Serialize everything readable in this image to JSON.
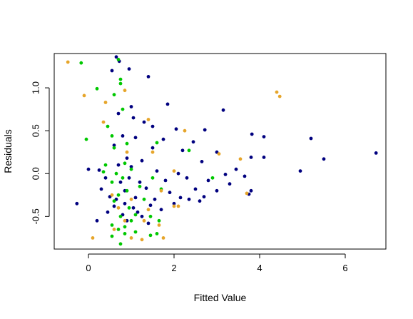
{
  "chart_data": {
    "type": "scatter",
    "title": "",
    "xlabel": "Fitted Value",
    "ylabel": "Residuals",
    "xlim": [
      -0.8,
      6.95
    ],
    "ylim": [
      -0.88,
      1.4
    ],
    "xticks": [
      0,
      2,
      4,
      6
    ],
    "yticks": [
      -0.5,
      0.0,
      0.5,
      1.0
    ],
    "xtick_labels": [
      "0",
      "2",
      "4",
      "6"
    ],
    "ytick_labels": [
      "-0.5",
      "0.0",
      "0.5",
      "1.0"
    ],
    "grid": false,
    "legend": "none",
    "series": [
      {
        "color": "#00007f",
        "points": [
          [
            0.65,
            1.36
          ],
          [
            0.72,
            1.31
          ],
          [
            0.55,
            1.2
          ],
          [
            0.95,
            1.22
          ],
          [
            1.4,
            1.13
          ],
          [
            1.85,
            0.81
          ],
          [
            1.0,
            0.78
          ],
          [
            3.15,
            0.74
          ],
          [
            0.7,
            0.7
          ],
          [
            1.05,
            0.65
          ],
          [
            1.3,
            0.6
          ],
          [
            2.05,
            0.52
          ],
          [
            2.72,
            0.51
          ],
          [
            3.82,
            0.46
          ],
          [
            4.1,
            0.43
          ],
          [
            5.2,
            0.41
          ],
          [
            0.8,
            0.44
          ],
          [
            1.1,
            0.42
          ],
          [
            1.75,
            0.4
          ],
          [
            2.45,
            0.37
          ],
          [
            0.6,
            0.33
          ],
          [
            1.5,
            0.3
          ],
          [
            2.2,
            0.27
          ],
          [
            3.0,
            0.25
          ],
          [
            3.8,
            0.19
          ],
          [
            4.1,
            0.19
          ],
          [
            5.5,
            0.17
          ],
          [
            6.72,
            0.24
          ],
          [
            0.9,
            0.18
          ],
          [
            1.25,
            0.15
          ],
          [
            2.65,
            0.14
          ],
          [
            3.45,
            0.05
          ],
          [
            4.95,
            0.03
          ],
          [
            0.0,
            0.05
          ],
          [
            0.25,
            0.04
          ],
          [
            1.0,
            0.08
          ],
          [
            1.6,
            0.03
          ],
          [
            2.1,
            0.0
          ],
          [
            3.2,
            -0.01
          ],
          [
            3.65,
            -0.03
          ],
          [
            0.4,
            -0.05
          ],
          [
            0.75,
            -0.1
          ],
          [
            1.2,
            -0.1
          ],
          [
            1.8,
            -0.08
          ],
          [
            2.3,
            -0.05
          ],
          [
            2.8,
            -0.08
          ],
          [
            3.3,
            -0.12
          ],
          [
            0.3,
            -0.18
          ],
          [
            0.85,
            -0.2
          ],
          [
            1.35,
            -0.17
          ],
          [
            1.9,
            -0.22
          ],
          [
            2.5,
            -0.18
          ],
          [
            3.0,
            -0.2
          ],
          [
            3.75,
            -0.24
          ],
          [
            0.5,
            -0.27
          ],
          [
            1.1,
            -0.28
          ],
          [
            1.55,
            -0.3
          ],
          [
            2.15,
            -0.28
          ],
          [
            2.7,
            -0.27
          ],
          [
            3.8,
            -0.2
          ],
          [
            -0.27,
            -0.35
          ],
          [
            0.6,
            -0.38
          ],
          [
            1.05,
            -0.4
          ],
          [
            1.45,
            -0.37
          ],
          [
            2.0,
            -0.35
          ],
          [
            2.6,
            -0.32
          ],
          [
            0.45,
            -0.45
          ],
          [
            0.8,
            -0.48
          ],
          [
            1.25,
            -0.5
          ],
          [
            1.7,
            -0.42
          ],
          [
            0.2,
            -0.55
          ],
          [
            0.9,
            -0.55
          ],
          [
            1.4,
            -0.58
          ],
          [
            0.65,
            -0.3
          ],
          [
            1.15,
            -0.45
          ],
          [
            0.95,
            -0.05
          ],
          [
            0.7,
            0.1
          ],
          [
            1.5,
            0.55
          ],
          [
            0.85,
            -0.35
          ],
          [
            2.35,
            -0.3
          ]
        ]
      },
      {
        "color": "#00c800",
        "points": [
          [
            -0.17,
            1.29
          ],
          [
            0.7,
            1.33
          ],
          [
            0.2,
            0.99
          ],
          [
            0.75,
            1.1
          ],
          [
            0.75,
            1.05
          ],
          [
            0.6,
            0.92
          ],
          [
            0.8,
            0.75
          ],
          [
            0.45,
            0.55
          ],
          [
            0.55,
            0.44
          ],
          [
            -0.05,
            0.4
          ],
          [
            1.6,
            0.36
          ],
          [
            0.6,
            0.3
          ],
          [
            0.9,
            0.35
          ],
          [
            2.35,
            0.27
          ],
          [
            0.4,
            0.1
          ],
          [
            0.85,
            0.12
          ],
          [
            1.0,
            0.05
          ],
          [
            0.35,
            0.02
          ],
          [
            0.8,
            -0.05
          ],
          [
            1.5,
            -0.05
          ],
          [
            2.9,
            -0.05
          ],
          [
            0.55,
            -0.1
          ],
          [
            1.2,
            -0.15
          ],
          [
            1.7,
            -0.18
          ],
          [
            0.7,
            -0.25
          ],
          [
            1.3,
            -0.3
          ],
          [
            0.6,
            -0.32
          ],
          [
            0.95,
            -0.4
          ],
          [
            0.75,
            -0.5
          ],
          [
            1.1,
            -0.48
          ],
          [
            1.45,
            -0.5
          ],
          [
            1.65,
            -0.55
          ],
          [
            0.55,
            -0.6
          ],
          [
            0.85,
            -0.62
          ],
          [
            0.7,
            -0.65
          ],
          [
            1.1,
            -0.68
          ],
          [
            0.85,
            -0.7
          ],
          [
            1.45,
            -0.72
          ],
          [
            1.6,
            -0.7
          ],
          [
            0.55,
            -0.73
          ],
          [
            0.75,
            -0.82
          ],
          [
            1.0,
            -0.55
          ],
          [
            0.65,
            0.0
          ],
          [
            0.9,
            -0.2
          ]
        ]
      },
      {
        "color": "#e6a52a",
        "points": [
          [
            -0.48,
            1.3
          ],
          [
            -0.1,
            0.91
          ],
          [
            0.4,
            0.83
          ],
          [
            0.85,
            0.97
          ],
          [
            4.4,
            0.95
          ],
          [
            4.47,
            0.9
          ],
          [
            0.35,
            0.6
          ],
          [
            1.4,
            0.63
          ],
          [
            2.25,
            0.5
          ],
          [
            3.05,
            0.23
          ],
          [
            3.55,
            0.17
          ],
          [
            0.9,
            0.25
          ],
          [
            1.5,
            0.25
          ],
          [
            2.0,
            0.03
          ],
          [
            1.7,
            -0.2
          ],
          [
            3.7,
            -0.23
          ],
          [
            0.55,
            -0.25
          ],
          [
            1.0,
            -0.3
          ],
          [
            2.0,
            -0.38
          ],
          [
            2.1,
            -0.38
          ],
          [
            0.7,
            -0.4
          ],
          [
            1.4,
            -0.42
          ],
          [
            0.85,
            -0.55
          ],
          [
            1.3,
            -0.55
          ],
          [
            0.1,
            -0.75
          ],
          [
            1.0,
            -0.75
          ],
          [
            1.25,
            -0.77
          ],
          [
            1.75,
            -0.75
          ],
          [
            0.6,
            -0.65
          ],
          [
            1.65,
            -0.6
          ]
        ]
      }
    ]
  }
}
